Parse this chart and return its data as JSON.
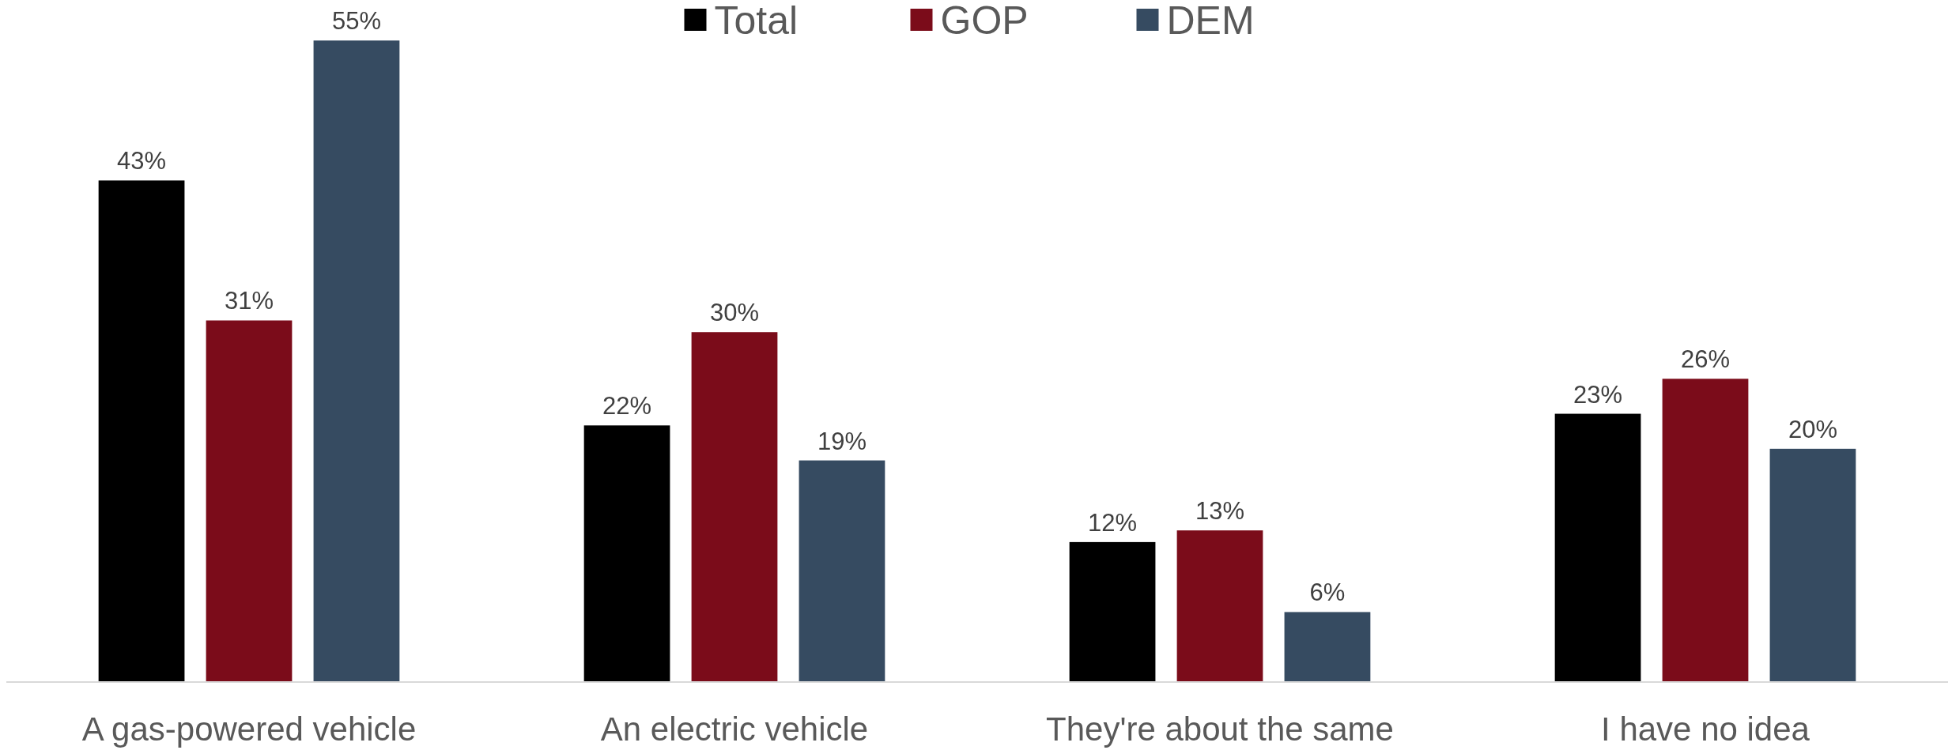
{
  "chart_data": {
    "type": "bar",
    "categories": [
      "A gas-powered vehicle",
      "An electric vehicle",
      "They're about the same",
      "I have no idea"
    ],
    "series": [
      {
        "name": "Total",
        "color": "#000000",
        "values": [
          43,
          22,
          12,
          23
        ],
        "value_labels": [
          "43%",
          "22%",
          "12%",
          "23%"
        ]
      },
      {
        "name": "GOP",
        "color": "#7b0c1a",
        "values": [
          31,
          30,
          13,
          26
        ],
        "value_labels": [
          "31%",
          "30%",
          "13%",
          "26%"
        ]
      },
      {
        "name": "DEM",
        "color": "#364b61",
        "values": [
          55,
          19,
          6,
          20
        ],
        "value_labels": [
          "55%",
          "19%",
          "6%",
          "20%"
        ]
      }
    ],
    "ylim": [
      0,
      58
    ],
    "legend": "top"
  }
}
